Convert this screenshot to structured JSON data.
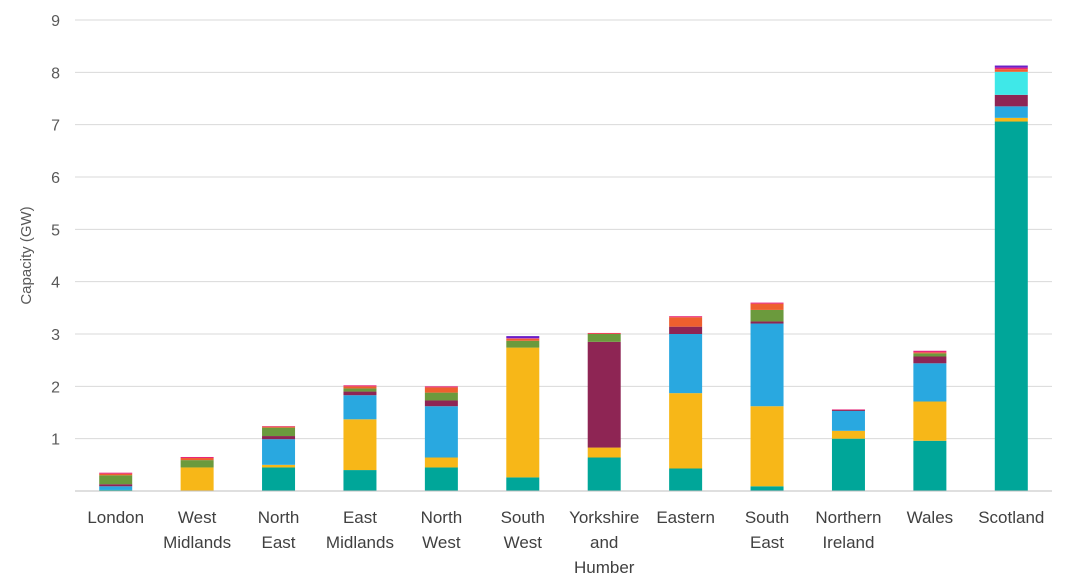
{
  "chart_data": {
    "type": "bar",
    "stacked": true,
    "ylabel": "Capacity (GW)",
    "ylim": [
      0,
      9
    ],
    "yticks": [
      "1",
      "2",
      "3",
      "4",
      "5",
      "6",
      "7",
      "8",
      "9"
    ],
    "grid": true,
    "categories": [
      [
        "London"
      ],
      [
        "West",
        "Midlands"
      ],
      [
        "North",
        "East"
      ],
      [
        "East",
        "Midlands"
      ],
      [
        "North",
        "West"
      ],
      [
        "South",
        "West"
      ],
      [
        "Yorkshire",
        "and",
        "Humber"
      ],
      [
        "Eastern"
      ],
      [
        "South",
        "East"
      ],
      [
        "Northern",
        "Ireland"
      ],
      [
        "Wales"
      ],
      [
        "Scotland"
      ]
    ],
    "series": [
      {
        "color": "#00A699",
        "values": [
          0.02,
          0.0,
          0.45,
          0.4,
          0.45,
          0.26,
          0.64,
          0.43,
          0.09,
          1.0,
          0.96,
          7.06
        ]
      },
      {
        "color": "#F7B718",
        "values": [
          0.0,
          0.45,
          0.05,
          0.97,
          0.19,
          2.48,
          0.19,
          1.44,
          1.53,
          0.15,
          0.75,
          0.07
        ]
      },
      {
        "color": "#29A8E0",
        "values": [
          0.07,
          0.0,
          0.49,
          0.46,
          0.98,
          0.0,
          0.0,
          1.13,
          1.58,
          0.38,
          0.73,
          0.22
        ]
      },
      {
        "color": "#8E2554",
        "values": [
          0.04,
          0.0,
          0.06,
          0.07,
          0.11,
          0.0,
          2.02,
          0.14,
          0.04,
          0.02,
          0.13,
          0.22
        ]
      },
      {
        "color": "#6B9A3D",
        "values": [
          0.17,
          0.14,
          0.16,
          0.06,
          0.15,
          0.13,
          0.15,
          0.0,
          0.22,
          0.0,
          0.06,
          0.0
        ]
      },
      {
        "color": "#3FE8E8",
        "values": [
          0.0,
          0.0,
          0.0,
          0.0,
          0.0,
          0.0,
          0.0,
          0.0,
          0.0,
          0.0,
          0.0,
          0.44
        ]
      },
      {
        "color": "#EE5F2E",
        "values": [
          0.03,
          0.04,
          0.02,
          0.04,
          0.1,
          0.04,
          0.01,
          0.18,
          0.12,
          0.0,
          0.02,
          0.05
        ]
      },
      {
        "color": "#E8257A",
        "values": [
          0.02,
          0.02,
          0.01,
          0.02,
          0.02,
          0.01,
          0.01,
          0.02,
          0.02,
          0.01,
          0.03,
          0.03
        ]
      },
      {
        "color": "#6A1FC9",
        "values": [
          0.0,
          0.0,
          0.0,
          0.0,
          0.0,
          0.04,
          0.0,
          0.0,
          0.0,
          0.0,
          0.0,
          0.04
        ]
      }
    ]
  }
}
